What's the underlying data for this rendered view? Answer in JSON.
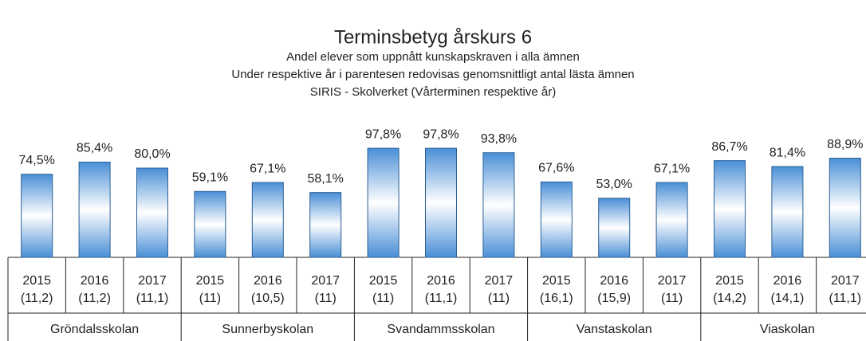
{
  "chart_data": {
    "type": "bar",
    "title": "Terminsbetyg årskurs 6",
    "subtitle": [
      "Andel elever som uppnått kunskapskraven i alla ämnen",
      "Under respektive år i parentesen redovisas genomsnittligt antal lästa ämnen",
      "SIRIS - Skolverket (Vårterminen respektive år)"
    ],
    "color": "#5b9bd5",
    "groups": [
      {
        "name": "Gröndalsskolan",
        "categories": [
          "2015",
          "2016",
          "2017"
        ],
        "counts": [
          "(11,2)",
          "(11,2)",
          "(11,1)"
        ],
        "values": [
          74.5,
          85.4,
          80.0
        ],
        "value_labels": [
          "74,5%",
          "85,4%",
          "80,0%"
        ]
      },
      {
        "name": "Sunnerbyskolan",
        "categories": [
          "2015",
          "2016",
          "2017"
        ],
        "counts": [
          "(11)",
          "(10,5)",
          "(11)"
        ],
        "values": [
          59.1,
          67.1,
          58.1
        ],
        "value_labels": [
          "59,1%",
          "67,1%",
          "58,1%"
        ]
      },
      {
        "name": "Svandammsskolan",
        "categories": [
          "2015",
          "2016",
          "2017"
        ],
        "counts": [
          "(11)",
          "(11,1)",
          "(11)"
        ],
        "values": [
          97.8,
          97.8,
          93.8
        ],
        "value_labels": [
          "97,8%",
          "97,8%",
          "93,8%"
        ]
      },
      {
        "name": "Vanstaskolan",
        "categories": [
          "2015",
          "2016",
          "2017"
        ],
        "counts": [
          "(16,1)",
          "(15,9)",
          "(11)"
        ],
        "values": [
          67.6,
          53.0,
          67.1
        ],
        "value_labels": [
          "67,6%",
          "53,0%",
          "67,1%"
        ]
      },
      {
        "name": "Viaskolan",
        "categories": [
          "2015",
          "2016",
          "2017"
        ],
        "counts": [
          "(14,2)",
          "(14,1)",
          "(11,1)"
        ],
        "values": [
          86.7,
          81.4,
          88.9
        ],
        "value_labels": [
          "86,7%",
          "81,4%",
          "88,9%"
        ]
      }
    ]
  }
}
